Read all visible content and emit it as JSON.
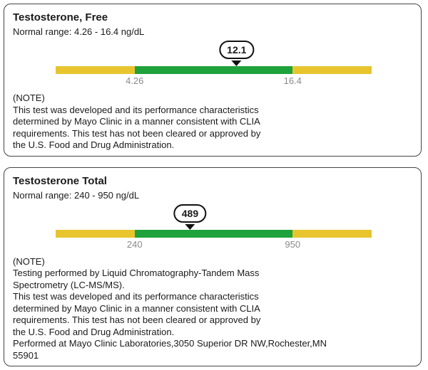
{
  "colors": {
    "bar_yellow": "#e8c52e",
    "bar_green": "#1fa23c",
    "card_border": "#444444",
    "range_label_gray": "#8a8a8a",
    "text": "#1a1a1a",
    "bubble_border": "#111111"
  },
  "cards": [
    {
      "title": "Testosterone, Free",
      "normal_range_text": "Normal range: 4.26 - 16.4 ng/dL",
      "value": 12.1,
      "value_display": "12.1",
      "range_min": 4.26,
      "range_max": 16.4,
      "range_min_label": "4.26",
      "range_max_label": "16.4",
      "unit": "ng/dL",
      "note_lines": [
        "(NOTE)",
        "This test was developed and its performance characteristics",
        "determined by Mayo Clinic in a manner consistent with CLIA",
        "requirements. This test has not been cleared or approved by",
        "the U.S. Food and Drug Administration."
      ]
    },
    {
      "title": "Testosterone Total",
      "normal_range_text": "Normal range: 240 - 950 ng/dL",
      "value": 489,
      "value_display": "489",
      "range_min": 240,
      "range_max": 950,
      "range_min_label": "240",
      "range_max_label": "950",
      "unit": "ng/dL",
      "note_lines": [
        "(NOTE)",
        "Testing performed by Liquid Chromatography-Tandem Mass",
        "Spectrometry (LC-MS/MS).",
        "This test was developed and its performance characteristics",
        "determined by Mayo Clinic in a manner consistent with CLIA",
        "requirements. This test has not been cleared or approved by",
        "the U.S. Food and Drug Administration.",
        "Performed at Mayo Clinic Laboratories,3050 Superior DR NW,Rochester,MN",
        "55901"
      ]
    }
  ],
  "chart_data": [
    {
      "type": "gauge",
      "title": "Testosterone, Free",
      "value": 12.1,
      "unit": "ng/dL",
      "normal_range": [
        4.26,
        16.4
      ],
      "tick_labels": [
        "4.26",
        "16.4"
      ],
      "zones": [
        {
          "color": "#e8c52e",
          "label": "below-normal",
          "span_pct": [
            0,
            25
          ]
        },
        {
          "color": "#1fa23c",
          "label": "normal",
          "span_pct": [
            25,
            75
          ]
        },
        {
          "color": "#e8c52e",
          "label": "above-normal",
          "span_pct": [
            75,
            100
          ]
        }
      ]
    },
    {
      "type": "gauge",
      "title": "Testosterone Total",
      "value": 489,
      "unit": "ng/dL",
      "normal_range": [
        240,
        950
      ],
      "tick_labels": [
        "240",
        "950"
      ],
      "zones": [
        {
          "color": "#e8c52e",
          "label": "below-normal",
          "span_pct": [
            0,
            25
          ]
        },
        {
          "color": "#1fa23c",
          "label": "normal",
          "span_pct": [
            25,
            75
          ]
        },
        {
          "color": "#e8c52e",
          "label": "above-normal",
          "span_pct": [
            75,
            100
          ]
        }
      ]
    }
  ]
}
